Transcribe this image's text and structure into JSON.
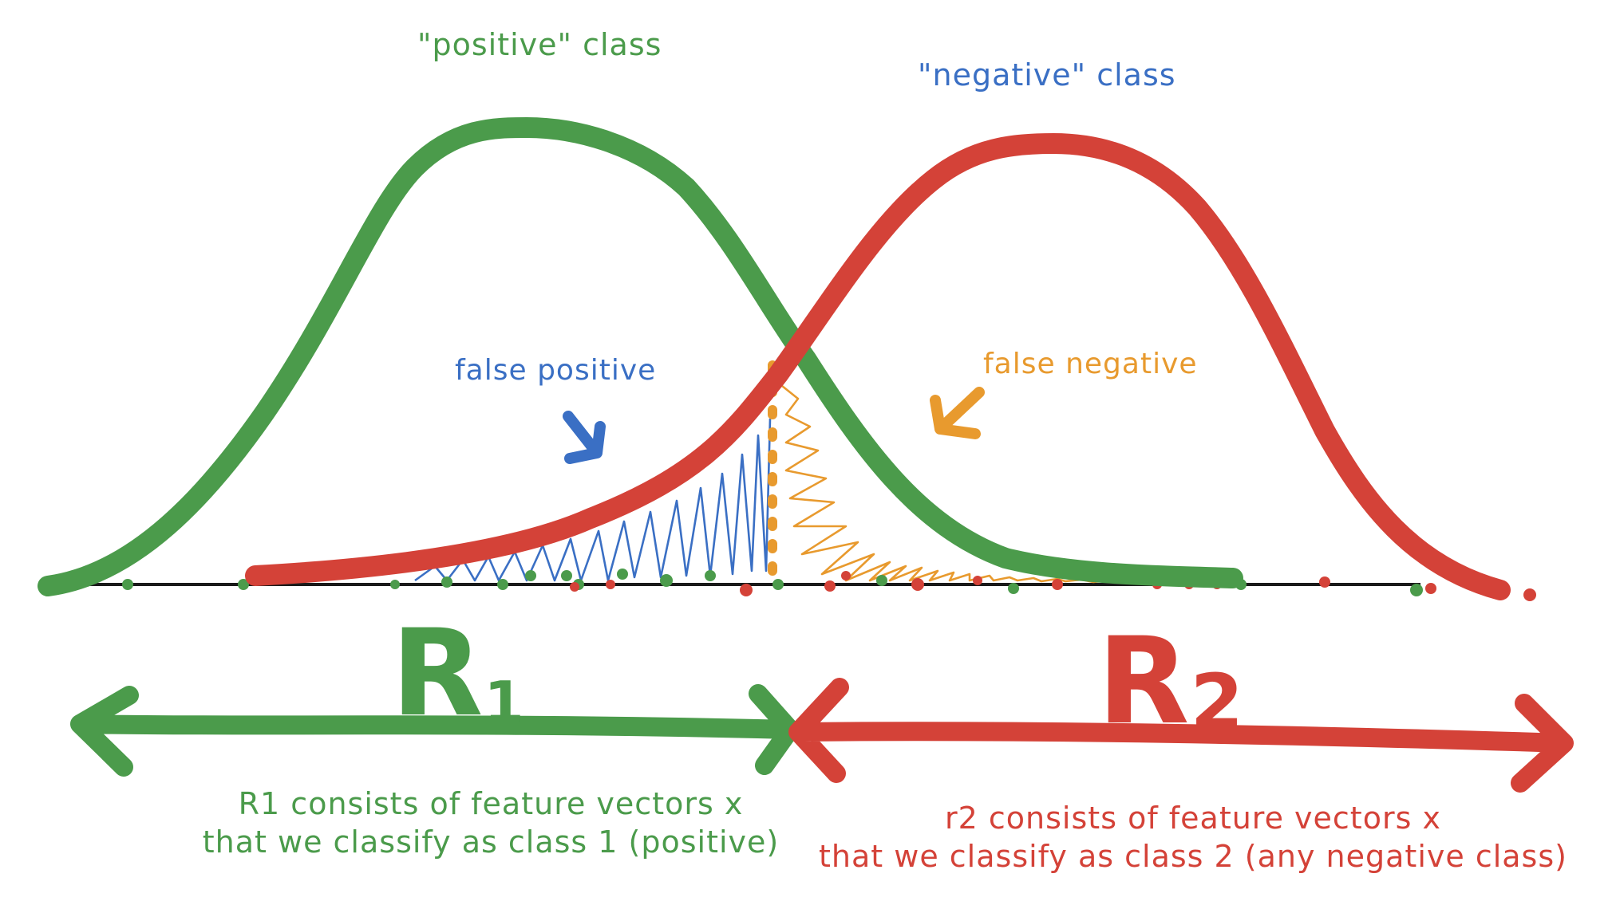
{
  "colors": {
    "positive": "#4b9b4b",
    "negative": "#d44238",
    "false_positive": "#3a6fc4",
    "false_negative": "#e89a2e",
    "axis": "#1a1a1a"
  },
  "labels": {
    "positive_class": "\"positive\" class",
    "negative_class": "\"negative\" class",
    "false_positive": "false positive",
    "false_negative": "false negative",
    "region1": "R",
    "region1_sub": "1",
    "region2": "R",
    "region2_sub": "2"
  },
  "descriptions": {
    "r1_line1": "R1 consists of feature vectors x",
    "r1_line2": "that we classify as class 1 (positive)",
    "r2_line1": "r2 consists of feature vectors x",
    "r2_line2": "that we classify as class 2 (any negative class)"
  }
}
